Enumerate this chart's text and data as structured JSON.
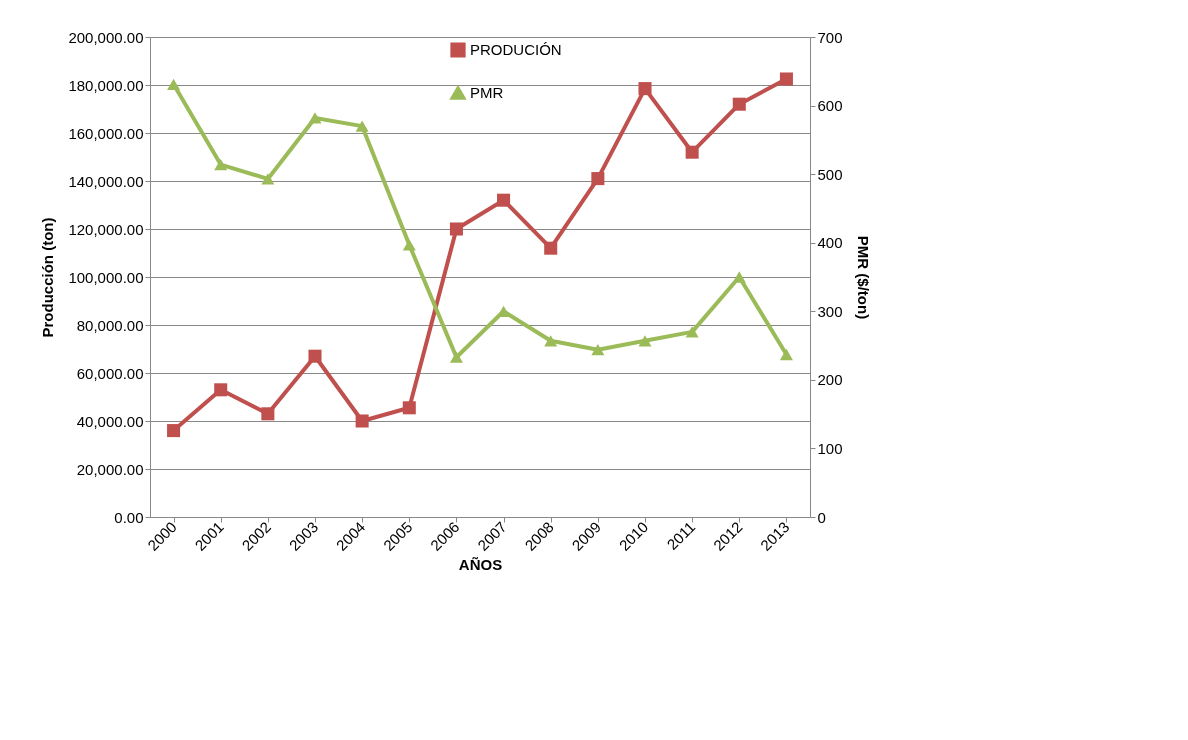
{
  "chart_data": {
    "type": "line",
    "xlabel": "AÑOS",
    "ylabel": "Producción  (ton)",
    "y2label": "PMR ($/ton)",
    "categories": [
      "2000",
      "2001",
      "2002",
      "2003",
      "2004",
      "2005",
      "2006",
      "2007",
      "2008",
      "2009",
      "2010",
      "2011",
      "2012",
      "2013"
    ],
    "series": [
      {
        "name": "PRODUCIÓN",
        "color": "#c0504d",
        "marker": "square",
        "values": [
          36000,
          53000,
          43000,
          67000,
          40000,
          45500,
          120000,
          132000,
          112000,
          141000,
          178500,
          152000,
          172000,
          182500
        ]
      },
      {
        "name": "PMR",
        "color": "#9bbb59",
        "marker": "triangle",
        "axis": "y2",
        "values": [
          631,
          514,
          493,
          582,
          570,
          397,
          233,
          300,
          257,
          244,
          257,
          270,
          350,
          237
        ]
      }
    ],
    "ylim": [
      0,
      200000
    ],
    "yticks": [
      {
        "value": 0,
        "label": "0.00"
      },
      {
        "value": 20000,
        "label": "20,000.00"
      },
      {
        "value": 40000,
        "label": "40,000.00"
      },
      {
        "value": 60000,
        "label": "60,000.00"
      },
      {
        "value": 80000,
        "label": "80,000.00"
      },
      {
        "value": 100000,
        "label": "100,000.00"
      },
      {
        "value": 120000,
        "label": "120,000.00"
      },
      {
        "value": 140000,
        "label": "140,000.00"
      },
      {
        "value": 160000,
        "label": "160,000.00"
      },
      {
        "value": 180000,
        "label": "180,000.00"
      },
      {
        "value": 200000,
        "label": "200,000.00"
      }
    ],
    "y2lim": [
      0,
      700
    ],
    "y2ticks": [
      0,
      100,
      200,
      300,
      400,
      500,
      600,
      700
    ],
    "grid": "y",
    "legend": "top",
    "line_style": "solid"
  }
}
